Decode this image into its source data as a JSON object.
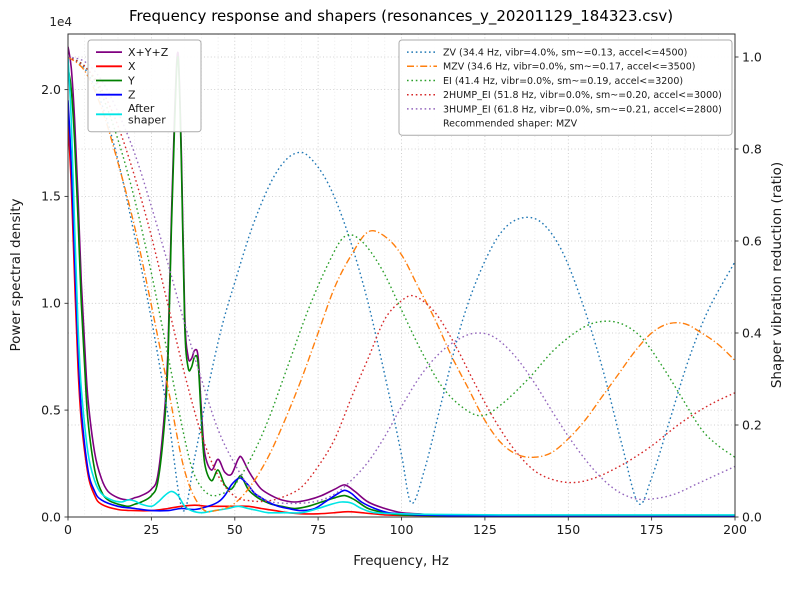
{
  "title": "Frequency response and shapers (resonances_y_20201129_184323.csv)",
  "axes": {
    "x": {
      "label": "Frequency, Hz",
      "min": 0,
      "max": 200,
      "ticks": [
        0,
        25,
        50,
        75,
        100,
        125,
        150,
        175,
        200
      ]
    },
    "y_left": {
      "label": "Power spectral density",
      "offset_text": "1e4",
      "min": 0,
      "max": 2.26,
      "ticks": [
        "0.0",
        "0.5",
        "1.0",
        "1.5",
        "2.0"
      ]
    },
    "y_right": {
      "label": "Shaper vibration reduction (ratio)",
      "min": 0,
      "max": 1.05,
      "ticks": [
        "0.0",
        "0.2",
        "0.4",
        "0.6",
        "0.8",
        "1.0"
      ]
    }
  },
  "chart_data": {
    "type": "line",
    "title": "Frequency response and shapers (resonances_y_20201129_184323.csv)",
    "xlabel": "Frequency, Hz",
    "ylabel_left": "Power spectral density (1e4)",
    "ylabel_right": "Shaper vibration reduction (ratio)",
    "xlim": [
      0,
      200
    ],
    "ylim_left": [
      0,
      2.26
    ],
    "ylim_right": [
      0,
      1.05
    ],
    "grid": true,
    "recommended_shaper": "MZV",
    "series": [
      {
        "id": "psd-xyz",
        "name": "X+Y+Z",
        "group": "psd",
        "axis": "left",
        "color": "#800080",
        "style": "solid",
        "x": [
          0,
          1,
          2,
          3,
          4,
          5,
          6,
          8,
          10,
          12,
          15,
          18,
          20,
          22,
          25,
          27,
          29,
          30,
          31,
          32,
          33,
          34,
          35,
          36,
          37,
          38,
          39,
          40,
          41,
          43,
          45,
          47,
          49,
          51,
          52,
          54,
          56,
          58,
          61,
          64,
          68,
          72,
          76,
          80,
          83,
          86,
          90,
          95,
          100,
          105,
          110,
          120,
          140,
          160,
          180,
          200
        ],
        "y": [
          2.2,
          2.1,
          1.85,
          1.5,
          1.1,
          0.8,
          0.55,
          0.3,
          0.18,
          0.12,
          0.09,
          0.08,
          0.09,
          0.1,
          0.13,
          0.2,
          0.5,
          0.8,
          1.4,
          1.9,
          2.17,
          1.7,
          0.95,
          0.75,
          0.74,
          0.78,
          0.75,
          0.5,
          0.3,
          0.22,
          0.27,
          0.21,
          0.2,
          0.27,
          0.28,
          0.22,
          0.17,
          0.13,
          0.1,
          0.08,
          0.07,
          0.08,
          0.1,
          0.13,
          0.15,
          0.12,
          0.07,
          0.04,
          0.02,
          0.015,
          0.01,
          0.008,
          0.005,
          0.004,
          0.003,
          0.003
        ]
      },
      {
        "id": "psd-x",
        "name": "X",
        "group": "psd",
        "axis": "left",
        "color": "#ff0000",
        "style": "solid",
        "x": [
          0,
          1,
          2,
          3,
          4,
          6,
          8,
          10,
          15,
          20,
          25,
          30,
          34,
          38,
          42,
          46,
          50,
          54,
          58,
          62,
          66,
          70,
          75,
          80,
          84,
          88,
          95,
          100,
          120,
          150,
          200
        ],
        "y": [
          1.85,
          1.55,
          1.1,
          0.7,
          0.45,
          0.2,
          0.1,
          0.06,
          0.035,
          0.03,
          0.03,
          0.04,
          0.05,
          0.055,
          0.05,
          0.05,
          0.05,
          0.05,
          0.04,
          0.03,
          0.02,
          0.015,
          0.015,
          0.02,
          0.025,
          0.02,
          0.01,
          0.008,
          0.005,
          0.003,
          0.002
        ]
      },
      {
        "id": "psd-y",
        "name": "Y",
        "group": "psd",
        "axis": "left",
        "color": "#008000",
        "style": "solid",
        "x": [
          0,
          1,
          2,
          3,
          4,
          5,
          6,
          8,
          10,
          12,
          15,
          18,
          20,
          22,
          25,
          27,
          29,
          30,
          31,
          32,
          33,
          34,
          35,
          36,
          37,
          38,
          39,
          40,
          41,
          43,
          45,
          47,
          49,
          51,
          52,
          54,
          56,
          58,
          61,
          64,
          68,
          72,
          76,
          80,
          83,
          86,
          90,
          95,
          100,
          105,
          110,
          120,
          140,
          160,
          180,
          200
        ],
        "y": [
          2.1,
          2.0,
          1.75,
          1.4,
          1.0,
          0.7,
          0.45,
          0.22,
          0.12,
          0.08,
          0.06,
          0.05,
          0.06,
          0.07,
          0.1,
          0.17,
          0.45,
          0.75,
          1.35,
          1.85,
          2.15,
          1.65,
          0.9,
          0.7,
          0.7,
          0.75,
          0.72,
          0.45,
          0.25,
          0.17,
          0.22,
          0.15,
          0.13,
          0.18,
          0.19,
          0.13,
          0.1,
          0.08,
          0.06,
          0.05,
          0.04,
          0.05,
          0.07,
          0.09,
          0.1,
          0.08,
          0.04,
          0.02,
          0.01,
          0.008,
          0.006,
          0.005,
          0.003,
          0.002,
          0.002,
          0.002
        ]
      },
      {
        "id": "psd-z",
        "name": "Z",
        "group": "psd",
        "axis": "left",
        "color": "#0000ff",
        "style": "solid",
        "x": [
          0,
          1,
          2,
          3,
          4,
          6,
          8,
          10,
          15,
          20,
          25,
          30,
          34,
          38,
          42,
          45,
          47,
          49,
          51,
          52,
          54,
          56,
          58,
          60,
          63,
          66,
          70,
          74,
          78,
          81,
          83,
          85,
          88,
          92,
          96,
          100,
          105,
          110,
          120,
          140,
          200
        ],
        "y": [
          1.95,
          1.65,
          1.2,
          0.8,
          0.5,
          0.22,
          0.12,
          0.08,
          0.05,
          0.04,
          0.03,
          0.03,
          0.04,
          0.035,
          0.05,
          0.07,
          0.1,
          0.15,
          0.18,
          0.18,
          0.15,
          0.11,
          0.09,
          0.07,
          0.05,
          0.04,
          0.03,
          0.04,
          0.08,
          0.11,
          0.125,
          0.11,
          0.07,
          0.04,
          0.02,
          0.015,
          0.01,
          0.008,
          0.005,
          0.003,
          0.002
        ]
      },
      {
        "id": "psd-after-shaper",
        "name": "After shaper",
        "group": "psd",
        "axis": "left",
        "color": "#00e5e5",
        "style": "solid",
        "x": [
          0,
          1,
          2,
          3,
          4,
          6,
          8,
          10,
          13,
          16,
          18,
          20,
          22,
          25,
          27,
          29,
          31,
          33,
          35,
          37,
          40,
          44,
          48,
          51,
          54,
          57,
          60,
          65,
          70,
          75,
          79,
          82,
          85,
          88,
          92,
          100,
          110,
          130,
          160,
          200
        ],
        "y": [
          2.15,
          1.85,
          1.35,
          0.9,
          0.6,
          0.3,
          0.17,
          0.11,
          0.08,
          0.07,
          0.08,
          0.075,
          0.06,
          0.05,
          0.07,
          0.1,
          0.12,
          0.1,
          0.05,
          0.03,
          0.02,
          0.03,
          0.04,
          0.05,
          0.04,
          0.03,
          0.02,
          0.02,
          0.02,
          0.04,
          0.06,
          0.07,
          0.065,
          0.04,
          0.02,
          0.015,
          0.012,
          0.01,
          0.01,
          0.01
        ]
      },
      {
        "id": "shaper-zv",
        "name": "ZV (34.4 Hz, vibr=4.0%, sm~=0.13, accel<=4500)",
        "group": "shaper",
        "axis": "right",
        "color": "#1f77b4",
        "style": "dotted",
        "x": [
          0,
          5,
          10,
          15,
          20,
          25,
          30,
          34.4,
          38,
          42,
          46,
          50,
          55,
          60,
          64,
          68,
          72,
          78,
          84,
          90,
          96,
          100,
          103,
          107,
          112,
          118,
          124,
          130,
          136,
          142,
          148,
          154,
          160,
          166,
          171,
          175,
          180,
          186,
          192,
          200
        ],
        "y": [
          1.0,
          0.975,
          0.9,
          0.775,
          0.61,
          0.43,
          0.22,
          0.015,
          0.13,
          0.28,
          0.41,
          0.51,
          0.625,
          0.715,
          0.765,
          0.79,
          0.785,
          0.725,
          0.615,
          0.465,
          0.275,
          0.135,
          0.03,
          0.105,
          0.25,
          0.42,
          0.54,
          0.62,
          0.65,
          0.64,
          0.58,
          0.47,
          0.33,
          0.16,
          0.03,
          0.085,
          0.2,
          0.34,
          0.45,
          0.555
        ]
      },
      {
        "id": "shaper-mzv",
        "name": "MZV (34.6 Hz, vibr=0.0%, sm~=0.17, accel<=3500)",
        "group": "shaper",
        "axis": "right",
        "color": "#ff7f0e",
        "style": "dashdot",
        "x": [
          0,
          5,
          10,
          15,
          20,
          25,
          30,
          35,
          40,
          45,
          50,
          55,
          60,
          65,
          70,
          75,
          80,
          85,
          90,
          95,
          100,
          105,
          110,
          115,
          120,
          125,
          130,
          135,
          140,
          145,
          150,
          155,
          160,
          165,
          170,
          175,
          180,
          185,
          190,
          195,
          200
        ],
        "y": [
          1.0,
          0.97,
          0.89,
          0.77,
          0.63,
          0.46,
          0.28,
          0.1,
          0.02,
          0.015,
          0.03,
          0.07,
          0.13,
          0.21,
          0.3,
          0.4,
          0.5,
          0.57,
          0.62,
          0.61,
          0.57,
          0.5,
          0.43,
          0.35,
          0.28,
          0.21,
          0.16,
          0.135,
          0.13,
          0.14,
          0.17,
          0.21,
          0.26,
          0.31,
          0.36,
          0.4,
          0.42,
          0.42,
          0.4,
          0.375,
          0.34
        ]
      },
      {
        "id": "shaper-ei",
        "name": "EI (41.4 Hz, vibr=0.0%, sm~=0.19, accel<=3200)",
        "group": "shaper",
        "axis": "right",
        "color": "#2ca02c",
        "style": "dotted",
        "x": [
          0,
          5,
          10,
          15,
          20,
          25,
          30,
          35,
          38,
          42,
          46,
          50,
          55,
          60,
          66,
          72,
          78,
          83,
          88,
          94,
          100,
          106,
          112,
          118,
          124,
          130,
          138,
          146,
          154,
          160,
          166,
          172,
          178,
          184,
          190,
          195,
          200
        ],
        "y": [
          1.0,
          0.98,
          0.92,
          0.82,
          0.69,
          0.53,
          0.35,
          0.17,
          0.09,
          0.05,
          0.05,
          0.07,
          0.13,
          0.21,
          0.33,
          0.45,
          0.55,
          0.61,
          0.6,
          0.54,
          0.45,
          0.36,
          0.285,
          0.24,
          0.22,
          0.245,
          0.3,
          0.365,
          0.41,
          0.425,
          0.42,
          0.39,
          0.33,
          0.26,
          0.19,
          0.155,
          0.13
        ]
      },
      {
        "id": "shaper-2hump-ei",
        "name": "2HUMP_EI (51.8 Hz, vibr=0.0%, sm~=0.20, accel<=3000)",
        "group": "shaper",
        "axis": "right",
        "color": "#d62728",
        "style": "dotted",
        "x": [
          0,
          5,
          10,
          15,
          20,
          25,
          30,
          35,
          40,
          45,
          50,
          55,
          60,
          65,
          70,
          75,
          80,
          85,
          90,
          95,
          100,
          104,
          110,
          116,
          122,
          128,
          134,
          140,
          146,
          152,
          158,
          164,
          170,
          176,
          182,
          188,
          194,
          200
        ],
        "y": [
          1.0,
          0.98,
          0.93,
          0.85,
          0.74,
          0.61,
          0.46,
          0.31,
          0.18,
          0.09,
          0.045,
          0.035,
          0.035,
          0.045,
          0.065,
          0.11,
          0.17,
          0.26,
          0.345,
          0.43,
          0.47,
          0.48,
          0.445,
          0.375,
          0.29,
          0.21,
          0.145,
          0.1,
          0.08,
          0.075,
          0.085,
          0.105,
          0.13,
          0.16,
          0.195,
          0.225,
          0.25,
          0.27
        ]
      },
      {
        "id": "shaper-3hump-ei",
        "name": "3HUMP_EI (61.8 Hz, vibr=0.0%, sm~=0.21, accel<=2800)",
        "group": "shaper",
        "axis": "right",
        "color": "#9467bd",
        "style": "dotted",
        "x": [
          0,
          5,
          10,
          15,
          20,
          25,
          30,
          35,
          40,
          45,
          50,
          55,
          60,
          65,
          70,
          75,
          80,
          85,
          90,
          95,
          100,
          106,
          112,
          118,
          123,
          128,
          134,
          140,
          146,
          152,
          158,
          164,
          170,
          176,
          182,
          188,
          194,
          200
        ],
        "y": [
          1.0,
          0.99,
          0.95,
          0.88,
          0.79,
          0.675,
          0.55,
          0.42,
          0.3,
          0.19,
          0.115,
          0.06,
          0.035,
          0.03,
          0.03,
          0.035,
          0.05,
          0.08,
          0.12,
          0.175,
          0.24,
          0.31,
          0.36,
          0.39,
          0.4,
          0.39,
          0.35,
          0.29,
          0.22,
          0.155,
          0.1,
          0.06,
          0.04,
          0.04,
          0.05,
          0.07,
          0.09,
          0.11
        ]
      }
    ],
    "legend_psd": {
      "entries": [
        {
          "series": "psd-xyz",
          "label": "X+Y+Z"
        },
        {
          "series": "psd-x",
          "label": "X"
        },
        {
          "series": "psd-y",
          "label": "Y"
        },
        {
          "series": "psd-z",
          "label": "Z"
        },
        {
          "series": "psd-after-shaper",
          "label": "After shaper",
          "lines": [
            "After",
            "shaper"
          ]
        }
      ]
    },
    "legend_shapers": {
      "entries": [
        {
          "series": "shaper-zv",
          "label": "ZV (34.4 Hz, vibr=4.0%, sm~=0.13, accel<=4500)"
        },
        {
          "series": "shaper-mzv",
          "label": "MZV (34.6 Hz, vibr=0.0%, sm~=0.17, accel<=3500)"
        },
        {
          "series": "shaper-ei",
          "label": "EI (41.4 Hz, vibr=0.0%, sm~=0.19, accel<=3200)"
        },
        {
          "series": "shaper-2hump-ei",
          "label": "2HUMP_EI (51.8 Hz, vibr=0.0%, sm~=0.20, accel<=3000)"
        },
        {
          "series": "shaper-3hump-ei",
          "label": "3HUMP_EI (61.8 Hz, vibr=0.0%, sm~=0.21, accel<=2800)"
        }
      ],
      "note": "Recommended shaper: MZV"
    }
  }
}
